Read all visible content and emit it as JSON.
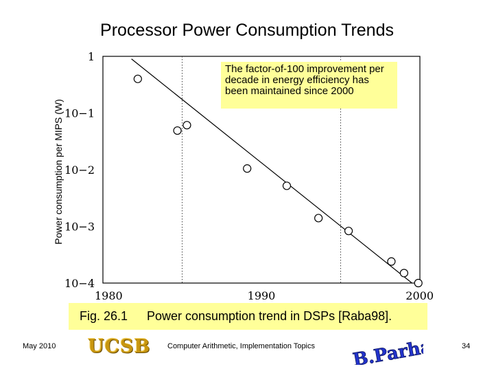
{
  "slide": {
    "title": "Processor Power Consumption Trends",
    "footer_date": "May 2010",
    "footer_center": "Computer Arithmetic, Implementation Topics",
    "page_number": "34",
    "logo_text": "UCSB",
    "signature_text": "B. Parhami"
  },
  "chart_data": {
    "type": "scatter",
    "ylabel": "Power consumption per MIPS (W)",
    "x_ticks": [
      "1980",
      "1990",
      "2000"
    ],
    "y_ticks": [
      "1",
      "10−1",
      "10−2",
      "10−3",
      "10−4"
    ],
    "xlim": [
      1980,
      2000
    ],
    "ylim_log10": [
      -4,
      0
    ],
    "y_scale": "log",
    "grid": "vertical dotted lines at 1985 and 1995",
    "points": [
      {
        "x": 1982.2,
        "y": 0.4
      },
      {
        "x": 1984.7,
        "y": 0.049
      },
      {
        "x": 1985.3,
        "y": 0.061
      },
      {
        "x": 1989.1,
        "y": 0.0105
      },
      {
        "x": 1991.6,
        "y": 0.0052
      },
      {
        "x": 1993.6,
        "y": 0.0014
      },
      {
        "x": 1995.5,
        "y": 0.00083
      },
      {
        "x": 1998.2,
        "y": 0.00024
      },
      {
        "x": 1999.0,
        "y": 0.00015
      },
      {
        "x": 1999.9,
        "y": 0.0001
      }
    ],
    "trend_line": {
      "x": [
        1981.8,
        1999.5
      ],
      "y": [
        0.9,
        0.0001
      ]
    },
    "annotation": "The factor-of-100 improvement per decade in energy efficiency has been maintained since 2000"
  },
  "caption": {
    "fig": "Fig. 26.1",
    "text": "Power consumption trend in DSPs [Raba98]."
  }
}
